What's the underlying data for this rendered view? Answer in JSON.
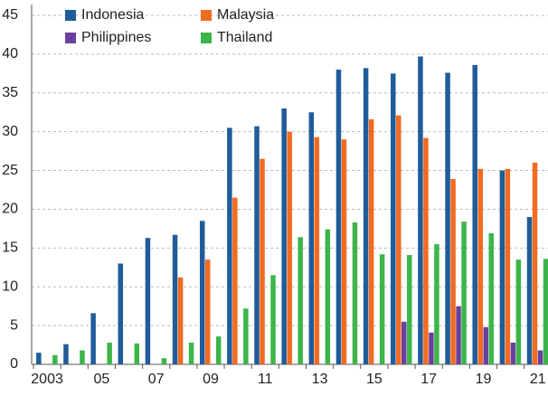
{
  "chart_data": {
    "type": "grouped_bar",
    "categories": [
      "2003",
      null,
      "05",
      null,
      "07",
      null,
      "09",
      null,
      "11",
      null,
      "13",
      null,
      "15",
      null,
      "17",
      null,
      "19",
      null,
      "21"
    ],
    "series": [
      {
        "name": "Indonesia",
        "color": "#1f5c99",
        "values": [
          1.5,
          2.6,
          6.6,
          13,
          16.3,
          16.7,
          18.5,
          30.5,
          30.7,
          33,
          32.5,
          38,
          38.2,
          37.5,
          39.7,
          37.6,
          38.6,
          25,
          19
        ]
      },
      {
        "name": "Malaysia",
        "color": "#f26b21",
        "values": [
          null,
          null,
          null,
          null,
          null,
          11.2,
          13.5,
          21.5,
          26.5,
          30,
          29.3,
          29,
          31.6,
          32.1,
          29.2,
          23.9,
          25.2,
          25.2,
          26
        ]
      },
      {
        "name": "Philippines",
        "color": "#6b3fa0",
        "values": [
          null,
          null,
          null,
          null,
          null,
          null,
          null,
          null,
          null,
          null,
          null,
          null,
          null,
          5.5,
          4.1,
          7.5,
          4.8,
          2.8,
          1.8
        ]
      },
      {
        "name": "Thailand",
        "color": "#3cb54a",
        "values": [
          1.2,
          1.8,
          2.8,
          2.7,
          0.8,
          2.8,
          3.6,
          7.2,
          11.5,
          16.4,
          17.4,
          18.3,
          14.2,
          14.1,
          15.5,
          18.4,
          16.9,
          13.5,
          13.6
        ]
      }
    ],
    "ylim": [
      0,
      45
    ],
    "yticks": [
      0,
      5,
      10,
      15,
      20,
      25,
      30,
      35,
      40,
      45
    ],
    "grid": true
  }
}
